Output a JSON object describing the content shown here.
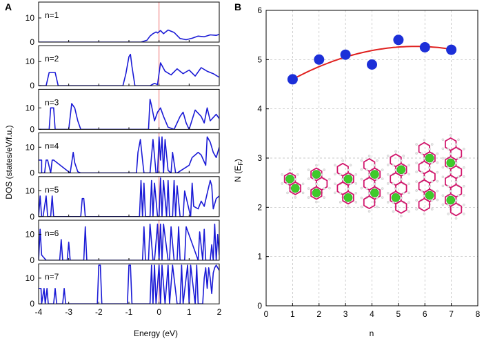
{
  "colors": {
    "dos_line": "#1a1ad6",
    "fermi_line": "#f07070",
    "points": "#1c2fd8",
    "fit": "#e0201e",
    "bond": "#d1156b",
    "hydrogen": "#e6e6e6",
    "calcium": "#3ecb2a"
  },
  "chart_data": [
    {
      "type": "line",
      "panel_label": "A",
      "xlabel": "Energy (eV)",
      "ylabel": "DOS (states/eV/f.u.)",
      "xlim": [
        -4,
        2
      ],
      "xticks": [
        "-4",
        "-3",
        "-2",
        "-1",
        "0",
        "1",
        "2"
      ],
      "fermi_energy": 0,
      "panels": [
        {
          "label": "n=1",
          "ylim": [
            0,
            16
          ],
          "yticks": [
            "0",
            "10"
          ],
          "x": [
            -4,
            -0.6,
            -0.4,
            -0.3,
            -0.2,
            -0.1,
            -0.05,
            0.05,
            0.15,
            0.3,
            0.5,
            0.7,
            0.9,
            1.1,
            1.3,
            1.5,
            1.7,
            1.9,
            2
          ],
          "y": [
            0,
            0,
            0.8,
            2.5,
            3.5,
            4.2,
            3.8,
            4.8,
            3.5,
            5,
            4,
            1.5,
            1,
            1.6,
            2.5,
            2.2,
            3,
            2.8,
            3.2
          ]
        },
        {
          "label": "n=2",
          "ylim": [
            0,
            16
          ],
          "yticks": [
            "0",
            "10"
          ],
          "x": [
            -4,
            -3.75,
            -3.65,
            -3.55,
            -3.45,
            -3.35,
            -1.2,
            -1.1,
            -1.0,
            -0.95,
            -0.9,
            -0.8,
            -0.3,
            -0.15,
            -0.05,
            0.05,
            0.2,
            0.4,
            0.6,
            0.8,
            1.0,
            1.2,
            1.4,
            1.6,
            1.8,
            2.0
          ],
          "y": [
            0,
            0,
            5.5,
            5.5,
            5.5,
            0,
            0,
            5,
            12,
            13,
            8,
            0,
            0,
            1,
            0.5,
            9.5,
            6,
            4.5,
            7,
            5,
            6.5,
            4,
            7.5,
            6,
            5,
            3.5
          ]
        },
        {
          "label": "n=3",
          "ylim": [
            0,
            18
          ],
          "yticks": [
            "0",
            "10"
          ],
          "x": [
            -4,
            -3.65,
            -3.6,
            -3.5,
            -3.45,
            -3.0,
            -2.9,
            -2.8,
            -2.7,
            -2.6,
            -0.35,
            -0.3,
            -0.25,
            -0.15,
            -0.05,
            0.05,
            0.15,
            0.3,
            0.5,
            0.7,
            0.8,
            0.9,
            1.0,
            1.2,
            1.4,
            1.5,
            1.6,
            1.7,
            1.9,
            2.0
          ],
          "y": [
            0,
            0,
            10,
            10,
            0,
            0,
            12,
            10,
            4,
            0,
            0,
            14,
            11,
            4,
            8,
            10,
            6,
            1,
            0,
            6,
            8,
            3,
            0,
            9,
            6,
            3,
            10,
            4,
            7,
            5
          ]
        },
        {
          "label": "n=4",
          "ylim": [
            0,
            15
          ],
          "yticks": [
            "0",
            "10"
          ],
          "x": [
            -4,
            -3.9,
            -3.9,
            -3.8,
            -3.75,
            -3.7,
            -3.6,
            -3.55,
            -3.5,
            -2.95,
            -2.85,
            -2.8,
            -2.7,
            -2.6,
            -0.75,
            -0.7,
            -0.62,
            -0.55,
            -0.5,
            -0.4,
            -0.3,
            -0.2,
            -0.1,
            -0.05,
            0.0,
            0.05,
            0.1,
            0.15,
            0.2,
            0.3,
            0.4,
            0.45,
            0.55,
            0.6,
            1.0,
            1.1,
            1.2,
            1.3,
            1.4,
            1.55,
            1.6,
            1.7,
            1.8,
            1.9,
            2.0
          ],
          "y": [
            5,
            5,
            0,
            0,
            5,
            5,
            0,
            5,
            5,
            0,
            8,
            4,
            0.5,
            0,
            0,
            8,
            13,
            5,
            0,
            0,
            0,
            13,
            0,
            0,
            14,
            5,
            14,
            0,
            13,
            1,
            0,
            8,
            0,
            0,
            3,
            6,
            7,
            8,
            7,
            3,
            14,
            12,
            8,
            6,
            10
          ]
        },
        {
          "label": "n=5",
          "ylim": [
            0,
            15
          ],
          "yticks": [
            "0",
            "10"
          ],
          "x": [
            -4,
            -3.95,
            -3.9,
            -3.85,
            -3.75,
            -3.7,
            -3.6,
            -3.55,
            -3.5,
            -2.6,
            -2.55,
            -2.5,
            -2.45,
            -0.65,
            -0.6,
            -0.55,
            -0.5,
            -0.45,
            -0.3,
            -0.25,
            -0.2,
            -0.15,
            -0.05,
            0.0,
            0.05,
            0.1,
            0.15,
            0.25,
            0.3,
            0.35,
            0.45,
            0.5,
            0.55,
            0.6,
            0.7,
            0.8,
            0.85,
            1.05,
            1.1,
            1.15,
            1.3,
            1.4,
            1.5,
            1.6,
            1.7,
            1.75,
            1.8,
            1.9,
            2.0
          ],
          "y": [
            0,
            8,
            0,
            0,
            8,
            0,
            0,
            8,
            0,
            0,
            7,
            7,
            0,
            0,
            14,
            0,
            13,
            0,
            0,
            14,
            0,
            13,
            0,
            0,
            15,
            0,
            14,
            0,
            14,
            0,
            0,
            14,
            0,
            12,
            0,
            0,
            10,
            0,
            13,
            4,
            3,
            6,
            4,
            9,
            14,
            12,
            3,
            7,
            8
          ]
        },
        {
          "label": "n=6",
          "ylim": [
            0,
            15
          ],
          "yticks": [
            "0",
            "10"
          ],
          "x": [
            -4,
            -3.95,
            -3.9,
            -3.75,
            -3.7,
            -3.6,
            -3.3,
            -3.25,
            -3.2,
            -3.15,
            -3.05,
            -3.0,
            -2.95,
            -2.5,
            -2.45,
            -2.4,
            -0.55,
            -0.5,
            -0.45,
            -0.35,
            -0.3,
            -0.2,
            -0.15,
            -0.05,
            0.0,
            0.05,
            0.1,
            0.15,
            0.3,
            0.35,
            0.4,
            0.5,
            0.6,
            0.65,
            0.7,
            0.85,
            0.9,
            1.3,
            1.35,
            1.45,
            1.5,
            1.55,
            1.7,
            1.75,
            1.8,
            1.85,
            1.9,
            1.95,
            2.0
          ],
          "y": [
            0,
            12,
            2,
            0,
            0,
            0,
            0,
            8,
            0,
            0,
            0,
            7,
            0,
            0,
            13,
            0,
            0,
            13,
            0,
            0,
            14,
            0,
            0,
            14,
            0,
            14,
            0,
            14,
            0,
            0,
            13,
            0,
            0,
            13,
            0,
            0,
            13,
            0,
            11,
            0,
            12,
            0,
            0,
            6,
            0,
            14,
            0,
            10,
            2
          ]
        },
        {
          "label": "n=7",
          "ylim": [
            0,
            15
          ],
          "yticks": [
            "0",
            "10"
          ],
          "x": [
            -4,
            -3.92,
            -3.9,
            -3.82,
            -3.78,
            -3.72,
            -3.68,
            -3.5,
            -3.45,
            -3.4,
            -3.2,
            -3.15,
            -3.1,
            -2.05,
            -2.0,
            -1.95,
            -1.9,
            -1.05,
            -1.0,
            -0.95,
            -0.9,
            -0.3,
            -0.25,
            -0.2,
            -0.15,
            -0.1,
            0.0,
            0.05,
            0.1,
            0.2,
            0.3,
            0.35,
            0.45,
            0.6,
            0.7,
            0.75,
            0.8,
            0.95,
            1.0,
            1.05,
            1.2,
            1.25,
            1.3,
            1.45,
            1.5,
            1.55,
            1.6,
            1.65,
            1.7,
            1.75,
            1.8,
            1.85,
            1.9,
            2.0
          ],
          "y": [
            6,
            6,
            0,
            6,
            0,
            6,
            0,
            0,
            6,
            0,
            0,
            6,
            0,
            0,
            15,
            15,
            0,
            0,
            15,
            15,
            0,
            0,
            15,
            0,
            15,
            0,
            15,
            0,
            15,
            0,
            15,
            0,
            15,
            0,
            0,
            15,
            0,
            15,
            0,
            15,
            0,
            15,
            0,
            0,
            10,
            14,
            6,
            14,
            10,
            4,
            12,
            14,
            15,
            13
          ]
        }
      ]
    },
    {
      "type": "scatter",
      "panel_label": "B",
      "xlabel": "n",
      "ylabel_main": "N (E",
      "ylabel_sub": "F",
      "ylabel_close": ")",
      "xlim": [
        0,
        8
      ],
      "ylim": [
        0,
        6
      ],
      "xticks": [
        "0",
        "1",
        "2",
        "3",
        "4",
        "5",
        "6",
        "7",
        "8"
      ],
      "yticks": [
        "0",
        "1",
        "2",
        "3",
        "4",
        "5",
        "6"
      ],
      "grid": true,
      "x": [
        1,
        2,
        3,
        4,
        5,
        6,
        7
      ],
      "y": [
        4.6,
        5.0,
        5.1,
        4.9,
        5.4,
        5.25,
        5.2
      ],
      "fit": {
        "type": "quadratic",
        "x_range": [
          1,
          7
        ],
        "coefficients": [
          4.28,
          0.35,
          -0.031
        ]
      },
      "structure_rings": [
        2,
        3,
        4,
        5,
        6,
        7,
        8
      ],
      "structure_ca_count": 2
    }
  ]
}
